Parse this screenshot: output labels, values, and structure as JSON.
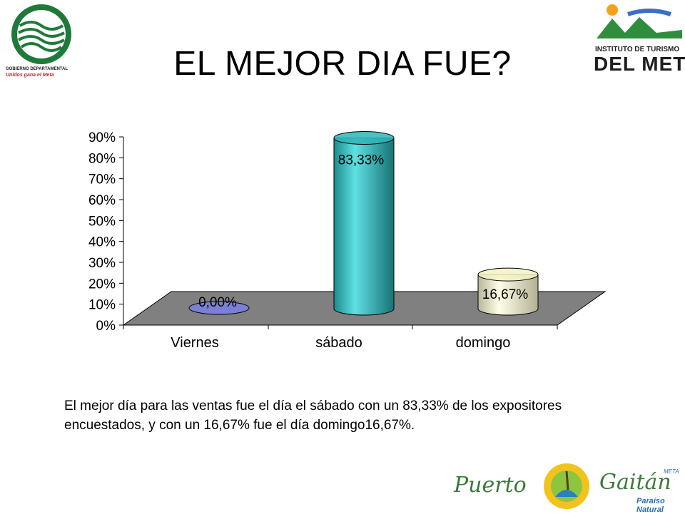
{
  "slide": {
    "title": "EL MEJOR DIA FUE?",
    "description": "El mejor día para las ventas fue el día el sábado con un 83,33% de los expositores encuestados, y con un 16,67% fue el día domingo16,67%."
  },
  "logos": {
    "left_caption_1": "GOBIERNO DEPARTAMENTAL",
    "left_caption_2": "Unidos gana el Meta",
    "right_line_1": "INSTITUTO DE TURISMO",
    "right_line_2": "DEL META",
    "bottom_word_1": "Puerto",
    "bottom_word_2": "Gaitán",
    "bottom_region": "META",
    "bottom_tagline": "Paraíso Natural"
  },
  "chart_data": {
    "type": "bar",
    "categories": [
      "Viernes",
      "sábado",
      "domingo"
    ],
    "values": [
      0.0,
      83.33,
      16.67
    ],
    "data_labels": [
      "0,00%",
      "83,33%",
      "16,67%"
    ],
    "ylim": [
      0,
      90
    ],
    "yticks": [
      "0%",
      "10%",
      "20%",
      "30%",
      "40%",
      "50%",
      "60%",
      "70%",
      "80%",
      "90%"
    ],
    "colors": [
      "#7b7fd6",
      "#2fb5b8",
      "#f4f2c4"
    ],
    "floor_color": "#808080",
    "grid": false,
    "legend": "none",
    "style": "3d-cylinder"
  }
}
